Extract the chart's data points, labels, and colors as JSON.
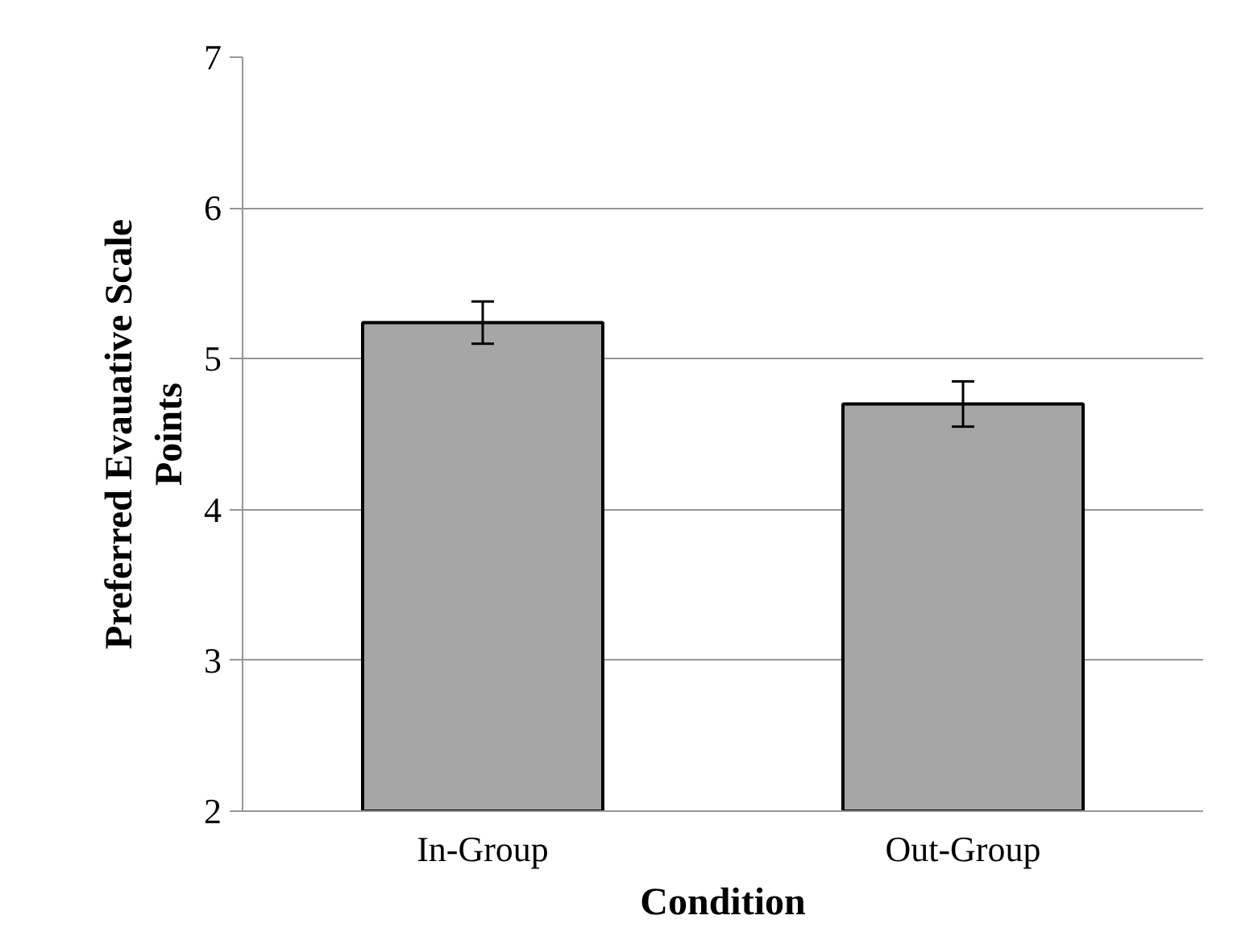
{
  "chart_data": {
    "type": "bar",
    "xlabel": "Condition",
    "ylabel": "Preferred Evauative Scale Points",
    "categories": [
      "In-Group",
      "Out-Group"
    ],
    "values": [
      5.24,
      4.7
    ],
    "errors": [
      0.14,
      0.15
    ],
    "color": "#a6a6a6",
    "ylim": [
      2,
      7
    ],
    "yticks": [
      2,
      3,
      4,
      5,
      6,
      7
    ],
    "grid": "y"
  }
}
